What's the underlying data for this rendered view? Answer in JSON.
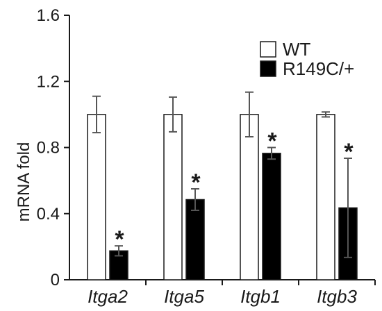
{
  "chart_data": {
    "type": "bar",
    "title": "",
    "xlabel": "",
    "ylabel": "mRNA fold",
    "ylim": [
      0,
      1.6
    ],
    "yticks": [
      "0",
      "0.4",
      "0.8",
      "1.2",
      "1.6"
    ],
    "categories": [
      "Itga2",
      "Itga5",
      "Itgb1",
      "Itgb3"
    ],
    "series": [
      {
        "name": "WT",
        "color": "#ffffff",
        "values": [
          1.0,
          1.0,
          1.0,
          1.0
        ],
        "errors": [
          0.11,
          0.105,
          0.135,
          0.015
        ]
      },
      {
        "name": "R149C/+",
        "color": "#000000",
        "values": [
          0.175,
          0.485,
          0.765,
          0.435
        ],
        "errors": [
          0.03,
          0.065,
          0.035,
          0.3
        ]
      }
    ],
    "significance": [
      "*",
      "*",
      "*",
      "*"
    ],
    "legend_position": "top-right",
    "grid": false
  }
}
